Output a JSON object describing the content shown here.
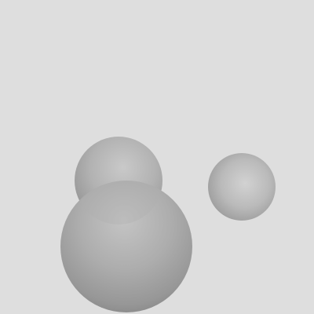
{
  "scene": {
    "background_color": "#dedede",
    "sphere_color": "#a9a9a9",
    "object_count": 3,
    "objects": [
      {
        "name": "sphere-back-large",
        "shape": "sphere",
        "color": "#a9a9a9"
      },
      {
        "name": "sphere-front-large",
        "shape": "sphere",
        "color": "#a9a9a9"
      },
      {
        "name": "sphere-right-small",
        "shape": "sphere",
        "color": "#a9a9a9"
      }
    ]
  }
}
